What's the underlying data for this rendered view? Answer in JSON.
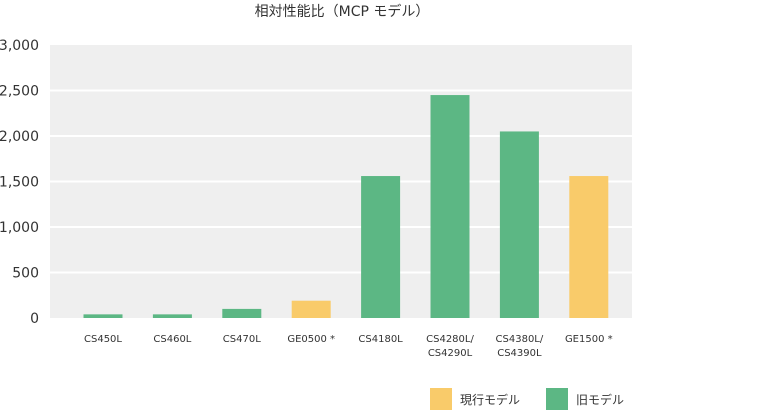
{
  "chart_data": {
    "type": "bar",
    "title": "相対性能比（MCP モデル）",
    "xlabel": "",
    "ylabel": "",
    "ylim": [
      0,
      3000
    ],
    "yticks": [
      "0",
      "500",
      "1,000",
      "1,500",
      "2,000",
      "2,500",
      "3,000"
    ],
    "ytick_values": [
      0,
      500,
      1000,
      1500,
      2000,
      2500,
      3000
    ],
    "grid": true,
    "legend_position": "bottom-right",
    "categories": [
      [
        "CS450L"
      ],
      [
        "CS460L"
      ],
      [
        "CS470L"
      ],
      [
        "GE0500 *"
      ],
      [
        "CS4180L"
      ],
      [
        "CS4280L/",
        "CS4290L"
      ],
      [
        "CS4380L/",
        "CS4390L"
      ],
      [
        "GE1500 *"
      ]
    ],
    "values": [
      40,
      40,
      100,
      190,
      1560,
      2450,
      2050,
      1560
    ],
    "groups": [
      "old",
      "old",
      "old",
      "current",
      "old",
      "old",
      "old",
      "current"
    ],
    "legend": [
      {
        "key": "current",
        "label": "現行モデル",
        "color": "#f9cb6a"
      },
      {
        "key": "old",
        "label": "旧モデル",
        "color": "#5cb784"
      }
    ],
    "colors": {
      "plot_bg": "#efefef",
      "grid": "#ffffff"
    }
  }
}
